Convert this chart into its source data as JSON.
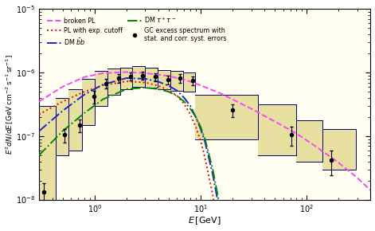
{
  "xlim": [
    0.3,
    400
  ],
  "ylim": [
    1e-08,
    1e-05
  ],
  "xlabel": "$E\\,[\\mathrm{GeV}]$",
  "ylabel": "$E^2dN/dE\\,[\\mathrm{GeV\\,cm^{-2}\\,s^{-1}\\,sr^{-1}}]$",
  "background_color": "#fffef0",
  "shaded_color": "#e8e0a0",
  "border_color": "#000066",
  "data_points": {
    "E": [
      0.33,
      0.52,
      0.72,
      0.98,
      1.28,
      1.68,
      2.18,
      2.85,
      3.75,
      4.9,
      6.4,
      8.4,
      20.0,
      72.0,
      170.0
    ],
    "y": [
      1.3e-08,
      1.05e-07,
      1.5e-07,
      4.2e-07,
      6.8e-07,
      8.2e-07,
      8.8e-07,
      9e-07,
      8.6e-07,
      7.8e-07,
      8.2e-07,
      7.5e-07,
      2.6e-07,
      1.05e-07,
      4.2e-08
    ],
    "yerr_lo": [
      5e-09,
      2.5e-08,
      3.5e-08,
      9e-08,
      1.2e-07,
      1.2e-07,
      1.2e-07,
      1.2e-07,
      1.2e-07,
      1.2e-07,
      1.2e-07,
      1.2e-07,
      6e-08,
      3.5e-08,
      1.8e-08
    ],
    "yerr_hi": [
      5e-09,
      2.5e-08,
      3.5e-08,
      9e-08,
      1.2e-07,
      1.2e-07,
      1.2e-07,
      1.2e-07,
      1.2e-07,
      1.2e-07,
      1.2e-07,
      1.2e-07,
      6e-08,
      3.5e-08,
      1.8e-08
    ]
  },
  "syst_band_edges": [
    0.3,
    0.43,
    0.57,
    0.76,
    1.0,
    1.32,
    1.74,
    2.28,
    3.0,
    3.94,
    5.17,
    6.79,
    8.91,
    35.0,
    80.0,
    140.0,
    290.0
  ],
  "syst_y_lo": [
    5e-09,
    5e-08,
    6e-08,
    1.5e-07,
    3e-07,
    4.5e-07,
    5.5e-07,
    6e-07,
    5.8e-07,
    5.5e-07,
    5.2e-07,
    5e-07,
    9e-08,
    5e-08,
    4e-08,
    3e-08,
    3e-08
  ],
  "syst_y_hi": [
    3e-07,
    4e-07,
    5.5e-07,
    8e-07,
    1.05e-06,
    1.15e-06,
    1.2e-06,
    1.25e-06,
    1.18e-06,
    1.1e-06,
    1.05e-06,
    1e-06,
    4.5e-07,
    3.2e-07,
    1.8e-07,
    1.3e-07,
    1.3e-07
  ],
  "broken_pl_E": [
    0.3,
    0.5,
    0.8,
    1.2,
    2.0,
    3.0,
    4.0,
    5.0,
    7.0,
    10.0,
    15.0,
    20.0,
    30.0,
    50.0,
    80.0,
    120.0,
    200.0,
    300.0,
    400.0
  ],
  "broken_pl_y": [
    3.5e-07,
    6e-07,
    8.5e-07,
    9.8e-07,
    1.02e-06,
    9.8e-07,
    9.3e-07,
    8.8e-07,
    7.8e-07,
    6.3e-07,
    4.8e-07,
    3.8e-07,
    2.7e-07,
    1.7e-07,
    1.1e-07,
    7e-08,
    3.8e-08,
    2.2e-08,
    1.4e-08
  ],
  "broken_pl_color": "#ff44ff",
  "pl_cutoff_E": [
    0.3,
    0.5,
    0.8,
    1.2,
    2.0,
    3.0,
    4.0,
    5.0,
    6.0,
    7.0,
    8.0,
    9.0,
    10.0,
    11.0,
    13.0,
    16.0
  ],
  "pl_cutoff_y": [
    2.2e-07,
    3.5e-07,
    5e-07,
    6.3e-07,
    7.3e-07,
    7e-07,
    6.2e-07,
    5.3e-07,
    4.3e-07,
    3.2e-07,
    2.2e-07,
    1.4e-07,
    8.5e-08,
    4.5e-08,
    1.2e-08,
    1.5e-09
  ],
  "pl_cutoff_color": "#dd1100",
  "dm_bb_E": [
    0.3,
    0.5,
    0.8,
    1.2,
    2.0,
    3.0,
    4.0,
    5.0,
    6.0,
    7.0,
    8.0,
    9.0,
    10.0,
    11.0,
    13.0,
    16.0,
    19.0
  ],
  "dm_bb_y": [
    1.2e-07,
    2.5e-07,
    4.5e-07,
    6.5e-07,
    8.2e-07,
    8e-07,
    7.2e-07,
    6.2e-07,
    5.2e-07,
    4e-07,
    3e-07,
    2e-07,
    1.3e-07,
    8e-08,
    2.5e-08,
    4e-09,
    4e-10
  ],
  "dm_bb_color": "#2222cc",
  "dm_tau_E": [
    0.3,
    0.5,
    0.8,
    1.2,
    2.0,
    3.0,
    4.0,
    5.0,
    6.0,
    7.0,
    8.0,
    9.0,
    10.0,
    11.0,
    13.0,
    16.0,
    19.0
  ],
  "dm_tau_y": [
    5e-08,
    1.2e-07,
    2.3e-07,
    3.8e-07,
    5.5e-07,
    5.8e-07,
    5.5e-07,
    5e-07,
    4.3e-07,
    3.5e-07,
    2.7e-07,
    2e-07,
    1.4e-07,
    9e-08,
    3e-08,
    5e-09,
    4e-10
  ],
  "dm_tau_color": "#008800",
  "legend_entries": [
    {
      "label": "broken PL",
      "color": "#ff44ff",
      "ls": "--"
    },
    {
      "label": "PL with exp. cutoff",
      "color": "#dd1100",
      "ls": ":"
    },
    {
      "label": "DM $\\bar{b}b$",
      "color": "#2222cc",
      "ls": "-."
    },
    {
      "label": "DM $\\tau^+\\tau^-$",
      "color": "#008800",
      "ls": "-."
    },
    {
      "label": "GC excess spectrum with\nstat. and corr. syst. errors",
      "color": "black",
      "ls": "none",
      "marker": "o"
    }
  ]
}
